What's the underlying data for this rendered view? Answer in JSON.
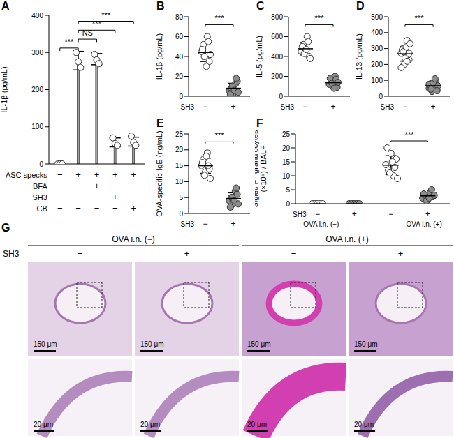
{
  "chart_data": [
    {
      "title": "A",
      "type": "bar",
      "y_label": [
        "IL-1β (pg/mL)"
      ],
      "ylim": [
        0,
        400
      ],
      "yticks": [
        0,
        100,
        200,
        300,
        400
      ],
      "color": "#a6a6a6",
      "marker": "circle",
      "values": [
        0,
        278,
        282,
        58,
        60
      ],
      "errors": [
        0,
        25,
        15,
        12,
        12
      ],
      "points": [
        [
          0,
          0,
          0
        ],
        [
          300,
          275,
          260
        ],
        [
          295,
          280,
          270
        ],
        [
          70,
          55,
          50
        ],
        [
          75,
          58,
          50
        ]
      ],
      "table": [
        {
          "label": "ASC specks",
          "signs": [
            "−",
            "+",
            "+",
            "+",
            "+"
          ]
        },
        {
          "label": "BFA",
          "signs": [
            "−",
            "−",
            "+",
            "−",
            "−"
          ]
        },
        {
          "label": "SH3",
          "signs": [
            "−",
            "−",
            "−",
            "+",
            "−"
          ]
        },
        {
          "label": "CB",
          "signs": [
            "−",
            "−",
            "−",
            "−",
            "+"
          ]
        }
      ],
      "comparisons": [
        {
          "from": 0,
          "to": 1,
          "label": "***"
        },
        {
          "from": 1,
          "to": 2,
          "label": "NS"
        },
        {
          "from": 1,
          "to": 3,
          "label": "***"
        },
        {
          "from": 1,
          "to": 4,
          "label": "***"
        }
      ]
    },
    {
      "title": "B",
      "type": "scatter",
      "y_label": [
        "IL-1β (pg/mL)"
      ],
      "ylim": [
        0,
        80
      ],
      "yticks": [
        0,
        20,
        40,
        60,
        80
      ],
      "x_title": "SH3",
      "marker": "circle",
      "groups": [
        {
          "label": "−",
          "color": "#ffffff",
          "values": [
            45,
            52,
            38,
            60,
            35,
            47,
            40,
            30,
            55,
            42
          ],
          "mean": 44,
          "sd": 9
        },
        {
          "label": "+",
          "color": "#8c8c8c",
          "values": [
            5,
            8,
            3,
            12,
            15,
            2,
            10,
            6,
            18,
            4
          ],
          "mean": 8,
          "sd": 5
        }
      ],
      "comparisons": [
        {
          "from": 0,
          "to": 1,
          "label": "***"
        }
      ]
    },
    {
      "title": "C",
      "type": "scatter",
      "y_label": [
        "IL-5 (pg/mL)"
      ],
      "ylim": [
        0,
        800
      ],
      "yticks": [
        0,
        200,
        400,
        600,
        800
      ],
      "x_title": "SH3",
      "marker": "circle",
      "groups": [
        {
          "label": "−",
          "color": "#ffffff",
          "values": [
            450,
            520,
            480,
            600,
            400,
            500,
            430,
            470,
            550,
            380
          ],
          "mean": 478,
          "sd": 62
        },
        {
          "label": "+",
          "color": "#8c8c8c",
          "values": [
            120,
            150,
            100,
            200,
            90,
            180,
            130,
            80,
            170,
            140
          ],
          "mean": 136,
          "sd": 38
        }
      ],
      "comparisons": [
        {
          "from": 0,
          "to": 1,
          "label": "***"
        }
      ]
    },
    {
      "title": "D",
      "type": "scatter",
      "y_label": [
        "IL-13 (pg/mL)"
      ],
      "ylim": [
        0,
        500
      ],
      "yticks": [
        0,
        100,
        200,
        300,
        400,
        500
      ],
      "x_title": "SH3",
      "marker": "circle",
      "groups": [
        {
          "label": "−",
          "color": "#ffffff",
          "values": [
            270,
            300,
            250,
            350,
            230,
            290,
            200,
            310,
            260,
            330,
            180,
            280,
            240,
            220,
            270
          ],
          "mean": 267,
          "sd": 46
        },
        {
          "label": "+",
          "color": "#8c8c8c",
          "values": [
            50,
            80,
            60,
            100,
            40,
            70,
            30,
            90,
            55,
            65,
            75,
            45,
            85,
            110,
            35
          ],
          "mean": 66,
          "sd": 23
        }
      ],
      "comparisons": [
        {
          "from": 0,
          "to": 1,
          "label": "***"
        }
      ]
    },
    {
      "title": "E",
      "type": "scatter",
      "y_label": [
        "OVA-specific IgE (ng/mL)"
      ],
      "ylim": [
        0,
        25
      ],
      "yticks": [
        0,
        5,
        10,
        15,
        20,
        25
      ],
      "x_title": "SH3",
      "marker": "circle",
      "groups": [
        {
          "label": "−",
          "color": "#ffffff",
          "values": [
            15,
            17,
            13,
            19,
            14,
            16,
            12,
            18,
            15,
            11
          ],
          "mean": 15,
          "sd": 2.4
        },
        {
          "label": "+",
          "color": "#8c8c8c",
          "values": [
            4,
            5,
            3,
            7,
            6,
            2,
            5,
            4,
            8,
            3
          ],
          "mean": 4.7,
          "sd": 1.8
        }
      ],
      "comparisons": [
        {
          "from": 0,
          "to": 1,
          "label": "***"
        }
      ]
    },
    {
      "title": "F",
      "type": "scatter",
      "y_label": [
        "Siglec F⁺ granulocytes",
        "(×10⁵) / BALF"
      ],
      "ylim": [
        0,
        25
      ],
      "yticks": [
        0,
        5,
        10,
        15,
        20,
        25
      ],
      "x_title": "SH3",
      "marker": "circle",
      "group_labels": [
        "OVA i.n. (−)",
        "OVA i.n. (+)"
      ],
      "groups": [
        {
          "label": "−",
          "color": "#ffffff",
          "values": [
            0,
            0,
            0,
            0,
            0
          ],
          "mean": 0,
          "sd": 0
        },
        {
          "label": "+",
          "color": "#8c8c8c",
          "values": [
            0,
            0,
            0,
            0,
            0
          ],
          "mean": 0,
          "sd": 0
        },
        {
          "label": "−",
          "color": "#ffffff",
          "values": [
            14,
            12,
            18,
            10,
            16,
            20,
            11,
            15,
            13,
            9
          ],
          "mean": 13.8,
          "sd": 3.4
        },
        {
          "label": "+",
          "color": "#8c8c8c",
          "values": [
            2,
            3,
            1.5,
            4,
            2.5,
            3.5,
            1,
            2,
            5,
            3
          ],
          "mean": 2.8,
          "sd": 1.2
        }
      ],
      "comparisons": [
        {
          "from": 2,
          "to": 3,
          "label": "***"
        }
      ]
    }
  ],
  "image_panel": {
    "title": "G",
    "row_label": "SH3",
    "column_groups": [
      {
        "label": "OVA i.n. (−)",
        "columns": [
          "−",
          "+"
        ]
      },
      {
        "label": "OVA i.n. (+)",
        "columns": [
          "−",
          "+"
        ]
      }
    ],
    "scale_bars": [
      "150 μm",
      "20 μm"
    ]
  }
}
